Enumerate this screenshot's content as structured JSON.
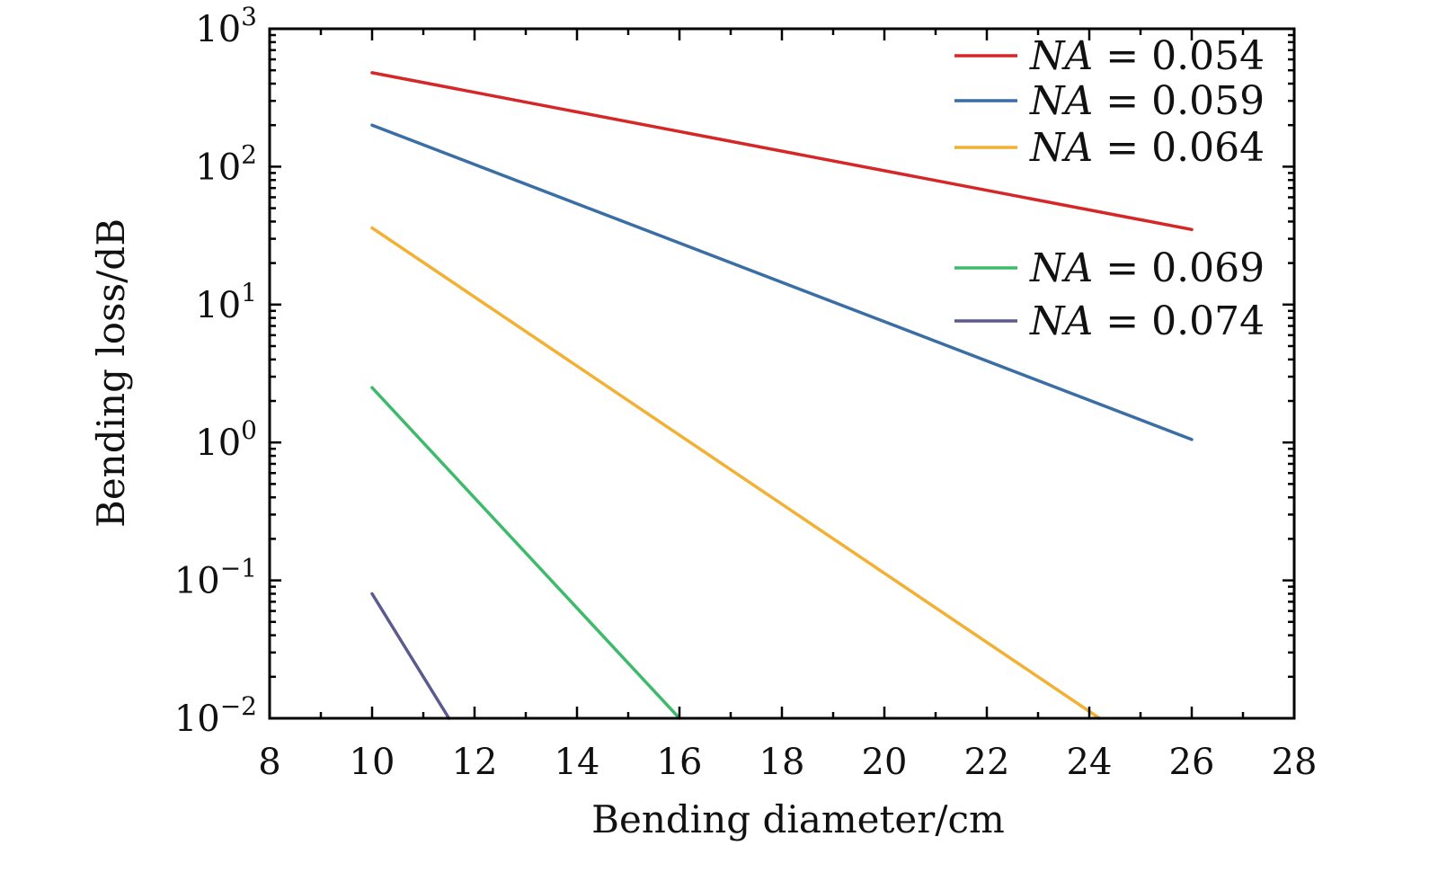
{
  "chart_data": {
    "type": "line",
    "title": "",
    "xlabel": "Bending diameter/cm",
    "ylabel": "Bending loss/dB",
    "xlim": [
      8,
      28
    ],
    "ylim": [
      0.01,
      1000
    ],
    "y_scale": "log",
    "grid": false,
    "legend_position": "top-right",
    "x_ticks": [
      8,
      10,
      12,
      14,
      16,
      18,
      20,
      22,
      24,
      26,
      28
    ],
    "x_tick_labels": [
      "8",
      "10",
      "12",
      "14",
      "16",
      "18",
      "20",
      "22",
      "24",
      "26",
      "28"
    ],
    "y_ticks": [
      {
        "value": 0.01,
        "base": "10",
        "exp": "−2"
      },
      {
        "value": 0.1,
        "base": "10",
        "exp": "−1"
      },
      {
        "value": 1,
        "base": "10",
        "exp": "0"
      },
      {
        "value": 10,
        "base": "10",
        "exp": "1"
      },
      {
        "value": 100,
        "base": "10",
        "exp": "2"
      },
      {
        "value": 1000,
        "base": "10",
        "exp": "3"
      }
    ],
    "series": [
      {
        "name": "NA = 0.054",
        "label_var": "NA",
        "label_value": "= 0.054",
        "color": "#d62728",
        "x": [
          10,
          26
        ],
        "y": [
          480,
          35
        ]
      },
      {
        "name": "NA = 0.059",
        "label_var": "NA",
        "label_value": "= 0.059",
        "color": "#3a6ea5",
        "x": [
          10,
          26
        ],
        "y": [
          200,
          1.05
        ]
      },
      {
        "name": "NA = 0.064",
        "label_var": "NA",
        "label_value": "= 0.064",
        "color": "#f2b134",
        "x": [
          10,
          24.2
        ],
        "y": [
          36,
          0.01
        ]
      },
      {
        "name": "NA = 0.069",
        "label_var": "NA",
        "label_value": "= 0.069",
        "color": "#3dbb6a",
        "x": [
          10,
          16
        ],
        "y": [
          2.5,
          0.01
        ]
      },
      {
        "name": "NA = 0.074",
        "label_var": "NA",
        "label_value": "= 0.074",
        "color": "#5b5b8f",
        "x": [
          10,
          11.5
        ],
        "y": [
          0.08,
          0.01
        ]
      }
    ]
  }
}
